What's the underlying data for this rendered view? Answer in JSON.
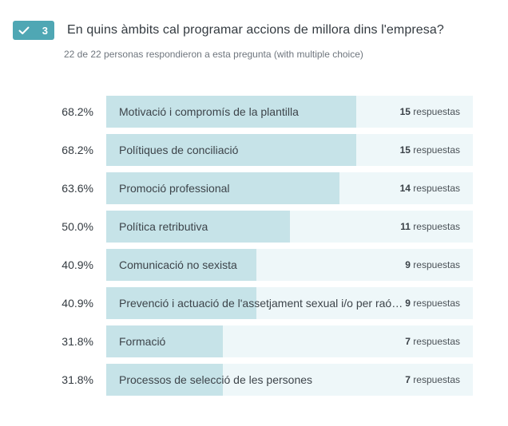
{
  "question": {
    "number": "3",
    "title": "En quins àmbits cal programar accions de millora dins l'empresa?",
    "subtitle": "22 de 22 personas respondieron a esta pregunta (with multiple choice)",
    "check_icon": "check-icon"
  },
  "colors": {
    "badge": "#4fa7b4",
    "fill": "#c6e3e8",
    "track": "#eef7f9"
  },
  "answer_unit": "respuestas",
  "answers": [
    {
      "percent": "68.2%",
      "fraction": 0.682,
      "label": "Motivació i compromís de la plantilla",
      "count": "15"
    },
    {
      "percent": "68.2%",
      "fraction": 0.682,
      "label": "Polítiques de conciliació",
      "count": "15"
    },
    {
      "percent": "63.6%",
      "fraction": 0.636,
      "label": "Promoció professional",
      "count": "14"
    },
    {
      "percent": "50.0%",
      "fraction": 0.5,
      "label": "Política retributiva",
      "count": "11"
    },
    {
      "percent": "40.9%",
      "fraction": 0.409,
      "label": "Comunicació no sexista",
      "count": "9"
    },
    {
      "percent": "40.9%",
      "fraction": 0.409,
      "label": "Prevenció i actuació de l'assetjament sexual i/o per raó de sexe",
      "count": "9"
    },
    {
      "percent": "31.8%",
      "fraction": 0.318,
      "label": "Formació",
      "count": "7"
    },
    {
      "percent": "31.8%",
      "fraction": 0.318,
      "label": "Processos de selecció de les persones",
      "count": "7"
    }
  ]
}
